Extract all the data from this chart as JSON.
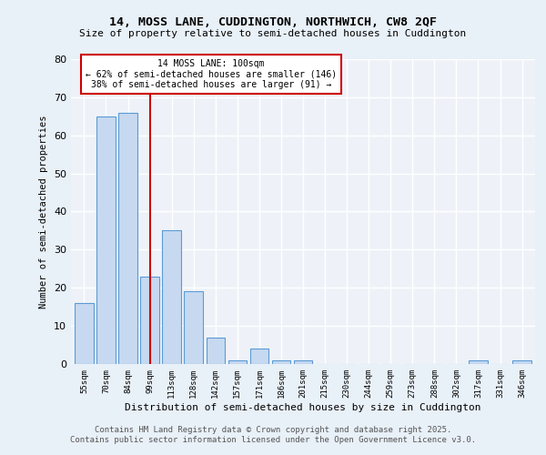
{
  "title1": "14, MOSS LANE, CUDDINGTON, NORTHWICH, CW8 2QF",
  "title2": "Size of property relative to semi-detached houses in Cuddington",
  "categories": [
    "55sqm",
    "70sqm",
    "84sqm",
    "99sqm",
    "113sqm",
    "128sqm",
    "142sqm",
    "157sqm",
    "171sqm",
    "186sqm",
    "201sqm",
    "215sqm",
    "230sqm",
    "244sqm",
    "259sqm",
    "273sqm",
    "288sqm",
    "302sqm",
    "317sqm",
    "331sqm",
    "346sqm"
  ],
  "values": [
    16,
    65,
    66,
    23,
    35,
    19,
    7,
    1,
    4,
    1,
    1,
    0,
    0,
    0,
    0,
    0,
    0,
    0,
    1,
    0,
    1
  ],
  "bar_color": "#c6d9f0",
  "bar_edge_color": "#5b9bd5",
  "red_line_index": 3,
  "annotation_title": "14 MOSS LANE: 100sqm",
  "annotation_line1": "← 62% of semi-detached houses are smaller (146)",
  "annotation_line2": "38% of semi-detached houses are larger (91) →",
  "xlabel": "Distribution of semi-detached houses by size in Cuddington",
  "ylabel": "Number of semi-detached properties",
  "ylim": [
    0,
    80
  ],
  "yticks": [
    0,
    10,
    20,
    30,
    40,
    50,
    60,
    70,
    80
  ],
  "footer1": "Contains HM Land Registry data © Crown copyright and database right 2025.",
  "footer2": "Contains public sector information licensed under the Open Government Licence v3.0.",
  "background_color": "#e8f0f8",
  "plot_background": "#eef2f8",
  "grid_color": "#ffffff",
  "annotation_box_color": "#ffffff",
  "annotation_box_edge": "#cc0000",
  "red_line_color": "#cc0000"
}
